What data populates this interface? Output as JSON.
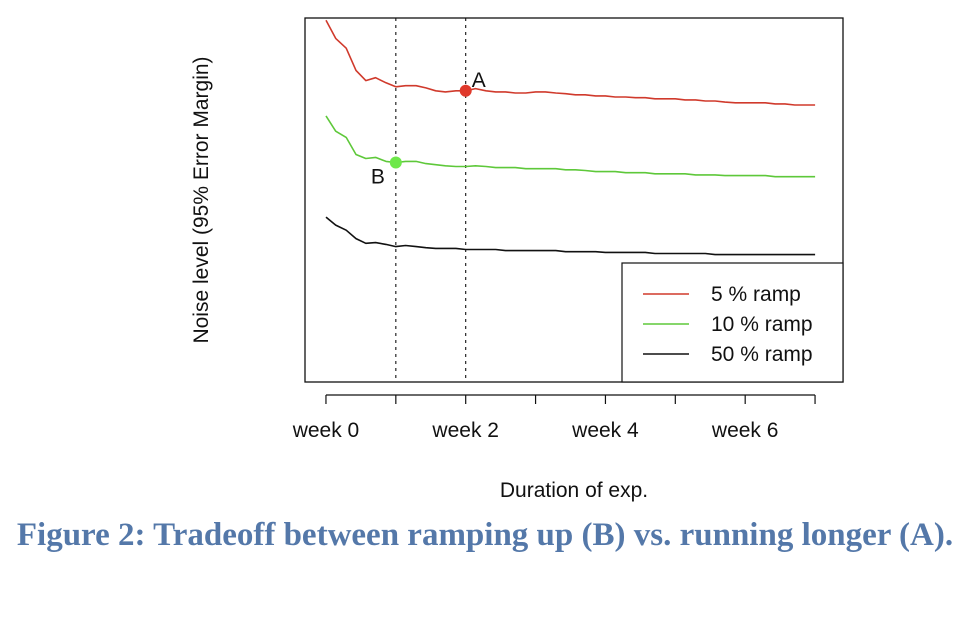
{
  "chart_data": {
    "type": "line",
    "xlabel": "Duration of exp.",
    "ylabel": "Noise level (95% Error Margin)",
    "x_ticks": [
      {
        "value": 0,
        "label": "week 0"
      },
      {
        "value": 1,
        "label": ""
      },
      {
        "value": 2,
        "label": "week 2"
      },
      {
        "value": 3,
        "label": ""
      },
      {
        "value": 4,
        "label": "week 4"
      },
      {
        "value": 5,
        "label": ""
      },
      {
        "value": 6,
        "label": "week 6"
      },
      {
        "value": 7,
        "label": ""
      }
    ],
    "xlim": [
      -0.3,
      7.4
    ],
    "ylim": [
      0,
      1
    ],
    "y_ticks_shown": false,
    "grid": false,
    "legend_position": "bottom-right",
    "vlines": [
      1,
      2
    ],
    "series": [
      {
        "name": "5 % ramp",
        "color": "#d03a2c",
        "x": [
          0,
          0.14,
          0.29,
          0.43,
          0.57,
          0.71,
          0.86,
          1,
          1.14,
          1.29,
          1.43,
          1.57,
          1.71,
          1.86,
          2,
          2.14,
          2.29,
          2.43,
          2.57,
          2.71,
          2.86,
          3,
          3.14,
          3.29,
          3.43,
          3.57,
          3.71,
          3.86,
          4,
          4.14,
          4.29,
          4.43,
          4.57,
          4.71,
          4.86,
          5,
          5.14,
          5.29,
          5.43,
          5.57,
          5.71,
          5.86,
          6,
          6.14,
          6.29,
          6.43,
          6.57,
          6.71,
          6.86,
          7
        ],
        "values": [
          0.994,
          0.944,
          0.917,
          0.856,
          0.828,
          0.836,
          0.822,
          0.811,
          0.814,
          0.814,
          0.808,
          0.8,
          0.797,
          0.8,
          0.8,
          0.806,
          0.8,
          0.797,
          0.797,
          0.794,
          0.794,
          0.797,
          0.797,
          0.794,
          0.792,
          0.789,
          0.789,
          0.786,
          0.786,
          0.783,
          0.783,
          0.781,
          0.781,
          0.778,
          0.778,
          0.778,
          0.775,
          0.775,
          0.772,
          0.772,
          0.769,
          0.767,
          0.767,
          0.767,
          0.767,
          0.764,
          0.764,
          0.761,
          0.761,
          0.761
        ]
      },
      {
        "name": "10 % ramp",
        "color": "#5ec83a",
        "x": [
          0,
          0.14,
          0.29,
          0.43,
          0.57,
          0.71,
          0.86,
          1,
          1.14,
          1.29,
          1.43,
          1.57,
          1.71,
          1.86,
          2,
          2.14,
          2.29,
          2.43,
          2.57,
          2.71,
          2.86,
          3,
          3.14,
          3.29,
          3.43,
          3.57,
          3.71,
          3.86,
          4,
          4.14,
          4.29,
          4.43,
          4.57,
          4.71,
          4.86,
          5,
          5.14,
          5.29,
          5.43,
          5.57,
          5.71,
          5.86,
          6,
          6.14,
          6.29,
          6.43,
          6.57,
          6.71,
          6.86,
          7
        ],
        "values": [
          0.731,
          0.689,
          0.672,
          0.625,
          0.614,
          0.617,
          0.606,
          0.603,
          0.606,
          0.606,
          0.6,
          0.597,
          0.594,
          0.592,
          0.592,
          0.594,
          0.592,
          0.589,
          0.589,
          0.589,
          0.586,
          0.586,
          0.586,
          0.586,
          0.583,
          0.583,
          0.581,
          0.578,
          0.578,
          0.578,
          0.575,
          0.575,
          0.575,
          0.572,
          0.572,
          0.572,
          0.572,
          0.569,
          0.569,
          0.569,
          0.567,
          0.567,
          0.567,
          0.567,
          0.567,
          0.564,
          0.564,
          0.564,
          0.564,
          0.564
        ]
      },
      {
        "name": "50 % ramp",
        "color": "#111111",
        "x": [
          0,
          0.14,
          0.29,
          0.43,
          0.57,
          0.71,
          0.86,
          1,
          1.14,
          1.29,
          1.43,
          1.57,
          1.71,
          1.86,
          2,
          2.14,
          2.29,
          2.43,
          2.57,
          2.71,
          2.86,
          3,
          3.14,
          3.29,
          3.43,
          3.57,
          3.71,
          3.86,
          4,
          4.14,
          4.29,
          4.43,
          4.57,
          4.71,
          4.86,
          5,
          5.14,
          5.29,
          5.43,
          5.57,
          5.71,
          5.86,
          6,
          6.14,
          6.29,
          6.43,
          6.57,
          6.71,
          6.86,
          7
        ],
        "values": [
          0.453,
          0.431,
          0.417,
          0.394,
          0.381,
          0.383,
          0.378,
          0.372,
          0.375,
          0.372,
          0.369,
          0.367,
          0.367,
          0.367,
          0.364,
          0.364,
          0.364,
          0.364,
          0.361,
          0.361,
          0.361,
          0.361,
          0.361,
          0.361,
          0.358,
          0.358,
          0.358,
          0.358,
          0.356,
          0.356,
          0.356,
          0.356,
          0.356,
          0.353,
          0.353,
          0.353,
          0.353,
          0.353,
          0.353,
          0.35,
          0.35,
          0.35,
          0.35,
          0.35,
          0.35,
          0.35,
          0.35,
          0.35,
          0.35,
          0.35
        ]
      }
    ],
    "points": [
      {
        "label": "A",
        "x": 2,
        "y": 0.8,
        "color": "#e0392b"
      },
      {
        "label": "B",
        "x": 1,
        "y": 0.603,
        "color": "#6ee84a"
      }
    ]
  },
  "caption": "Figure 2: Tradeoff between ramping up (B) vs. running longer (A)."
}
